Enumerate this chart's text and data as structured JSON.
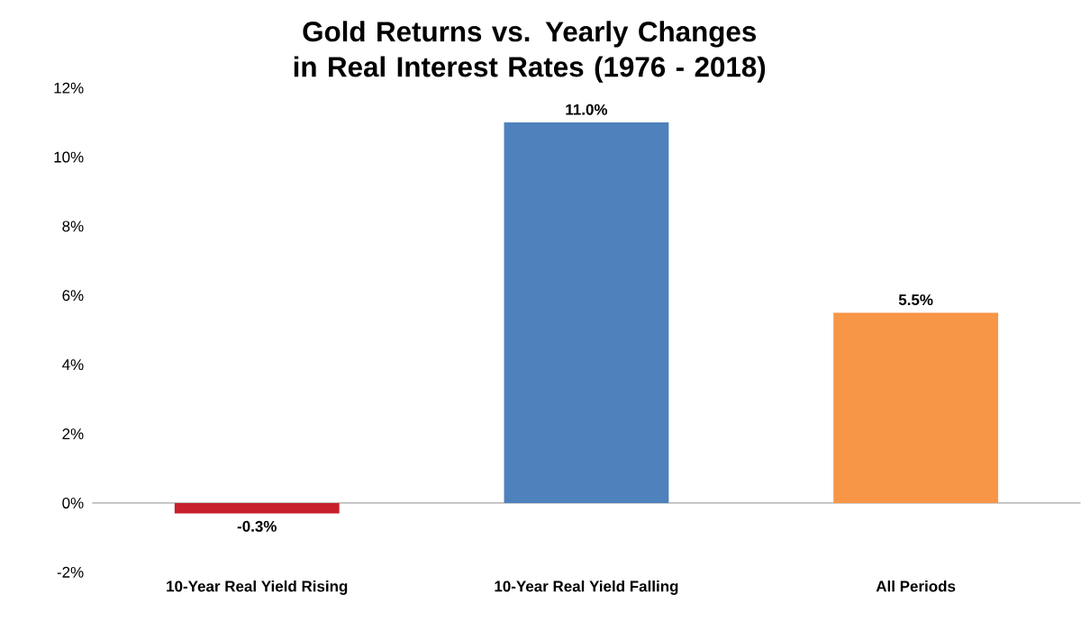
{
  "chart_data": {
    "type": "bar",
    "title": "Gold Returns vs. Yearly Changes in Real Interest Rates (1976 - 2018)",
    "categories": [
      "10-Year Real Yield Rising",
      "10-Year Real Yield Falling",
      "All Periods"
    ],
    "values": [
      -0.3,
      11.0,
      5.5
    ],
    "colors": [
      "#c8202c",
      "#4f81bd",
      "#f79646"
    ],
    "value_labels": [
      "-0.3%",
      "11.0%",
      "5.5%"
    ],
    "ylim": [
      -2,
      12
    ],
    "yticks": [
      {
        "value": -2,
        "label": "-2%"
      },
      {
        "value": 0,
        "label": "0%"
      },
      {
        "value": 2,
        "label": "2%"
      },
      {
        "value": 4,
        "label": "4%"
      },
      {
        "value": 6,
        "label": "6%"
      },
      {
        "value": 8,
        "label": "8%"
      },
      {
        "value": 10,
        "label": "10%"
      },
      {
        "value": 12,
        "label": "12%"
      }
    ],
    "tick_labels": "xy"
  }
}
